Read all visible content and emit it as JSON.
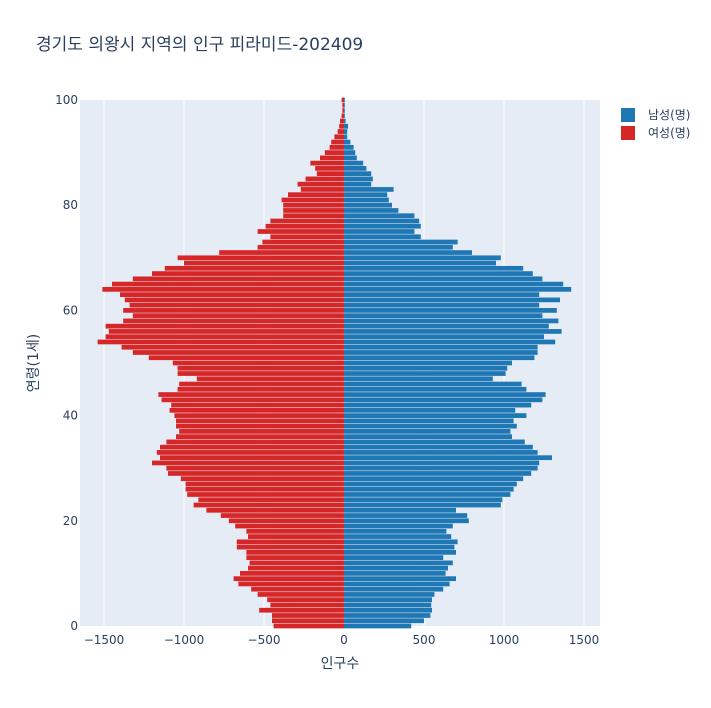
{
  "chart_data": {
    "type": "bar",
    "orientation": "horizontal",
    "title": "경기도 의왕시 지역의 인구 피라미드-202409",
    "xlabel": "인구수",
    "ylabel": "연령(1세)",
    "xlim": [
      -1650,
      1600
    ],
    "ylim": [
      0,
      100
    ],
    "x_ticks": [
      -1500,
      -1000,
      -500,
      0,
      500,
      1000,
      1500
    ],
    "x_tick_labels": [
      "−1500",
      "−1000",
      "−500",
      "0",
      "500",
      "1000",
      "1500"
    ],
    "y_ticks": [
      0,
      20,
      40,
      60,
      80,
      100
    ],
    "y_tick_labels": [
      "0",
      "20",
      "40",
      "60",
      "80",
      "100"
    ],
    "legend_position": "top-right",
    "series": [
      {
        "name": "남성(명)",
        "color": "#1f77b4",
        "ages": [
          0,
          1,
          2,
          3,
          4,
          5,
          6,
          7,
          8,
          9,
          10,
          11,
          12,
          13,
          14,
          15,
          16,
          17,
          18,
          19,
          20,
          21,
          22,
          23,
          24,
          25,
          26,
          27,
          28,
          29,
          30,
          31,
          32,
          33,
          34,
          35,
          36,
          37,
          38,
          39,
          40,
          41,
          42,
          43,
          44,
          45,
          46,
          47,
          48,
          49,
          50,
          51,
          52,
          53,
          54,
          55,
          56,
          57,
          58,
          59,
          60,
          61,
          62,
          63,
          64,
          65,
          66,
          67,
          68,
          69,
          70,
          71,
          72,
          73,
          74,
          75,
          76,
          77,
          78,
          79,
          80,
          81,
          82,
          83,
          84,
          85,
          86,
          87,
          88,
          89,
          90,
          91,
          92,
          93,
          94,
          95,
          96,
          97,
          98,
          99,
          100
        ],
        "values": [
          420,
          500,
          540,
          550,
          545,
          550,
          565,
          620,
          660,
          700,
          635,
          650,
          680,
          620,
          700,
          690,
          710,
          670,
          640,
          680,
          780,
          770,
          700,
          980,
          990,
          1040,
          1060,
          1080,
          1120,
          1170,
          1210,
          1220,
          1300,
          1210,
          1180,
          1130,
          1050,
          1040,
          1080,
          1060,
          1140,
          1070,
          1170,
          1240,
          1260,
          1140,
          1110,
          930,
          1010,
          1020,
          1050,
          1190,
          1210,
          1210,
          1320,
          1250,
          1360,
          1280,
          1340,
          1240,
          1330,
          1220,
          1350,
          1220,
          1420,
          1370,
          1240,
          1180,
          1120,
          950,
          980,
          800,
          680,
          710,
          480,
          440,
          480,
          470,
          440,
          340,
          300,
          280,
          270,
          310,
          170,
          180,
          170,
          140,
          120,
          80,
          70,
          60,
          40,
          20,
          20,
          25,
          10,
          5,
          5,
          5,
          5
        ]
      },
      {
        "name": "여성(명)",
        "color": "#d62728",
        "ages": [
          0,
          1,
          2,
          3,
          4,
          5,
          6,
          7,
          8,
          9,
          10,
          11,
          12,
          13,
          14,
          15,
          16,
          17,
          18,
          19,
          20,
          21,
          22,
          23,
          24,
          25,
          26,
          27,
          28,
          29,
          30,
          31,
          32,
          33,
          34,
          35,
          36,
          37,
          38,
          39,
          40,
          41,
          42,
          43,
          44,
          45,
          46,
          47,
          48,
          49,
          50,
          51,
          52,
          53,
          54,
          55,
          56,
          57,
          58,
          59,
          60,
          61,
          62,
          63,
          64,
          65,
          66,
          67,
          68,
          69,
          70,
          71,
          72,
          73,
          74,
          75,
          76,
          77,
          78,
          79,
          80,
          81,
          82,
          83,
          84,
          85,
          86,
          87,
          88,
          89,
          90,
          91,
          92,
          93,
          94,
          95,
          96,
          97,
          98,
          99,
          100
        ],
        "values": [
          -440,
          -450,
          -450,
          -530,
          -460,
          -480,
          -540,
          -580,
          -660,
          -690,
          -650,
          -600,
          -590,
          -610,
          -610,
          -670,
          -670,
          -600,
          -610,
          -680,
          -720,
          -770,
          -860,
          -940,
          -910,
          -980,
          -990,
          -990,
          -1020,
          -1100,
          -1110,
          -1200,
          -1150,
          -1170,
          -1150,
          -1110,
          -1050,
          -1030,
          -1050,
          -1050,
          -1060,
          -1090,
          -1080,
          -1140,
          -1160,
          -1040,
          -1030,
          -920,
          -1040,
          -1040,
          -1070,
          -1220,
          -1320,
          -1390,
          -1540,
          -1490,
          -1470,
          -1490,
          -1380,
          -1320,
          -1380,
          -1340,
          -1370,
          -1400,
          -1510,
          -1450,
          -1320,
          -1200,
          -1120,
          -1000,
          -1040,
          -780,
          -540,
          -510,
          -460,
          -540,
          -490,
          -460,
          -380,
          -380,
          -380,
          -390,
          -350,
          -270,
          -290,
          -240,
          -170,
          -180,
          -210,
          -150,
          -120,
          -90,
          -80,
          -60,
          -40,
          -30,
          -25,
          -15,
          -10,
          -10,
          -15
        ]
      }
    ]
  }
}
